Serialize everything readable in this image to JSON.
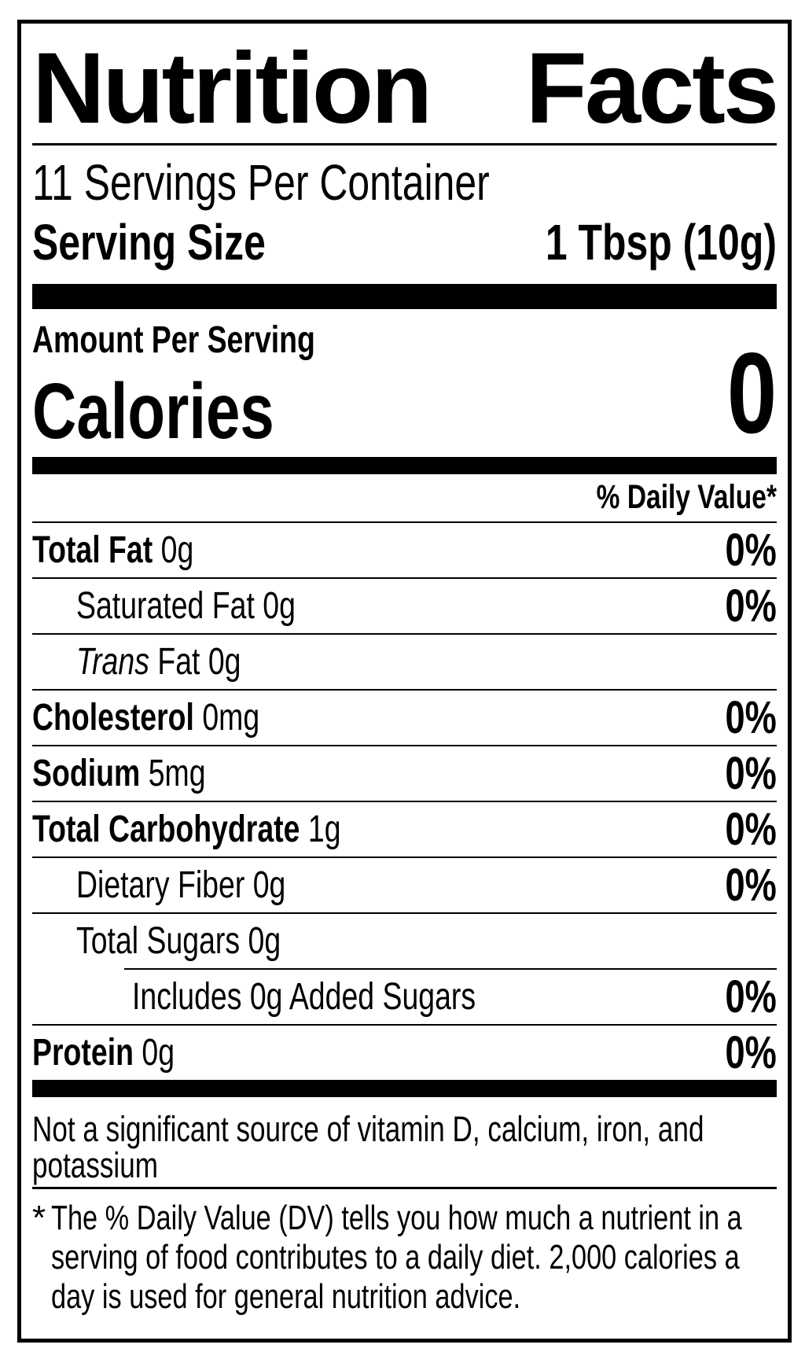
{
  "label": {
    "title": {
      "word1": "Nutrition",
      "word2": "Facts"
    },
    "servings_per_container": "11 Servings Per Container",
    "serving_size": {
      "label": "Serving Size",
      "value": "1 Tbsp (10g)"
    },
    "amount_per_serving": "Amount Per Serving",
    "calories": {
      "label": "Calories",
      "value": "0"
    },
    "daily_value_header": "% Daily Value*",
    "rows": [
      {
        "name": "Total Fat",
        "amount": "0g",
        "dv": "0%"
      },
      {
        "name": "Saturated Fat",
        "amount": "0g",
        "dv": "0%"
      },
      {
        "name_italic": "Trans",
        "name": "Fat",
        "amount": "0g",
        "dv": ""
      },
      {
        "name": "Cholesterol",
        "amount": "0mg",
        "dv": "0%"
      },
      {
        "name": "Sodium",
        "amount": "5mg",
        "dv": "0%"
      },
      {
        "name": "Total Carbohydrate",
        "amount": "1g",
        "dv": "0%"
      },
      {
        "name": "Dietary Fiber",
        "amount": "0g",
        "dv": "0%"
      },
      {
        "name": "Total Sugars",
        "amount": "0g",
        "dv": ""
      },
      {
        "name": "Includes 0g Added Sugars",
        "amount": "",
        "dv": "0%"
      },
      {
        "name": "Protein",
        "amount": "0g",
        "dv": "0%"
      }
    ],
    "not_significant": {
      "line1": "Not a significant source of vitamin D, calcium, iron, and",
      "line2": "potassium"
    },
    "footnote": {
      "marker": "*",
      "line1": "The % Daily Value (DV) tells you how much a nutrient in a",
      "line2": "serving of food contributes to a daily diet. 2,000 calories a",
      "line3": "day is used for general nutrition advice."
    },
    "colors": {
      "ink": "#000000",
      "paper": "#ffffff"
    }
  }
}
